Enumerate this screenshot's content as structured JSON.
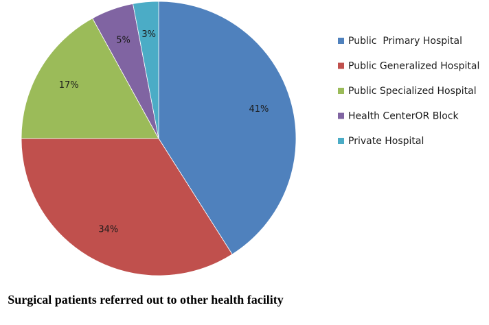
{
  "chart_data": {
    "type": "pie",
    "title": "Surgical patients referred out to other health facility",
    "start_angle_deg": 0,
    "direction": "clockwise",
    "legend_position": "right",
    "slices": [
      {
        "name": "Public  Primary Hospital",
        "value": 41,
        "label": "41%",
        "color": "#4f81bd"
      },
      {
        "name": "Public Generalized Hospital",
        "value": 34,
        "label": "34%",
        "color": "#c0504d"
      },
      {
        "name": "Public Specialized Hospital",
        "value": 17,
        "label": "17%",
        "color": "#9bbb59"
      },
      {
        "name": "Health CenterOR Block",
        "value": 5,
        "label": "5%",
        "color": "#8064a2"
      },
      {
        "name": "Private Hospital",
        "value": 3,
        "label": "3%",
        "color": "#4bacc6"
      }
    ]
  }
}
